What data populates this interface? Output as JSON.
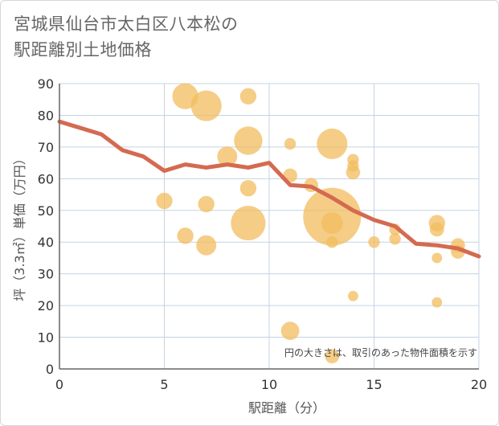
{
  "title_line1": "宮城県仙台市太白区八本松の",
  "title_line2": "駅距離別土地価格",
  "chart_data": {
    "type": "scatter",
    "xlabel": "駅距離（分）",
    "ylabel": "坪（3.3㎡）単価（万円）",
    "xlim": [
      0,
      20
    ],
    "ylim": [
      0,
      90
    ],
    "xticks": [
      0,
      5,
      10,
      15,
      20
    ],
    "yticks": [
      0,
      10,
      20,
      30,
      40,
      50,
      60,
      70,
      80,
      90
    ],
    "grid": true,
    "note": "円の大きさは、取引のあった物件面積を示す",
    "bubble_color": "#f2bc5e",
    "line_color": "#d46a50",
    "points": [
      {
        "x": 5,
        "y": 53,
        "size": 2
      },
      {
        "x": 6,
        "y": 86,
        "size": 5
      },
      {
        "x": 6,
        "y": 42,
        "size": 2
      },
      {
        "x": 7,
        "y": 83,
        "size": 7
      },
      {
        "x": 7,
        "y": 52,
        "size": 2
      },
      {
        "x": 7,
        "y": 39,
        "size": 3
      },
      {
        "x": 8,
        "y": 67,
        "size": 3
      },
      {
        "x": 9,
        "y": 86,
        "size": 2
      },
      {
        "x": 9,
        "y": 72,
        "size": 6
      },
      {
        "x": 9,
        "y": 57,
        "size": 2
      },
      {
        "x": 9,
        "y": 46,
        "size": 9
      },
      {
        "x": 11,
        "y": 71,
        "size": 1
      },
      {
        "x": 11,
        "y": 61,
        "size": 1.5
      },
      {
        "x": 11,
        "y": 12,
        "size": 2.5
      },
      {
        "x": 12,
        "y": 58,
        "size": 1.5
      },
      {
        "x": 13,
        "y": 71,
        "size": 7
      },
      {
        "x": 13,
        "y": 48,
        "size": 25
      },
      {
        "x": 13,
        "y": 46,
        "size": 3.5
      },
      {
        "x": 13,
        "y": 40,
        "size": 1
      },
      {
        "x": 13,
        "y": 4,
        "size": 1.5
      },
      {
        "x": 14,
        "y": 66,
        "size": 1
      },
      {
        "x": 14,
        "y": 64,
        "size": 1
      },
      {
        "x": 14,
        "y": 62,
        "size": 1.5
      },
      {
        "x": 14,
        "y": 23,
        "size": 0.8
      },
      {
        "x": 15,
        "y": 40,
        "size": 1
      },
      {
        "x": 16,
        "y": 44,
        "size": 1
      },
      {
        "x": 16,
        "y": 41,
        "size": 1
      },
      {
        "x": 18,
        "y": 46,
        "size": 2
      },
      {
        "x": 18,
        "y": 44,
        "size": 1.5
      },
      {
        "x": 18,
        "y": 35,
        "size": 0.8
      },
      {
        "x": 18,
        "y": 21,
        "size": 0.8
      },
      {
        "x": 19,
        "y": 39,
        "size": 1.5
      },
      {
        "x": 19,
        "y": 37,
        "size": 1.5
      }
    ],
    "trend_line": {
      "x": [
        0,
        1,
        2,
        3,
        4,
        5,
        6,
        7,
        8,
        9,
        10,
        11,
        12,
        13,
        14,
        15,
        16,
        17,
        18,
        19,
        20
      ],
      "y": [
        78,
        76,
        74,
        69,
        67,
        62.5,
        64.5,
        63.5,
        64.5,
        63.5,
        65,
        58,
        57.5,
        54,
        50,
        47,
        45,
        39.5,
        39,
        38,
        35.5
      ]
    }
  }
}
